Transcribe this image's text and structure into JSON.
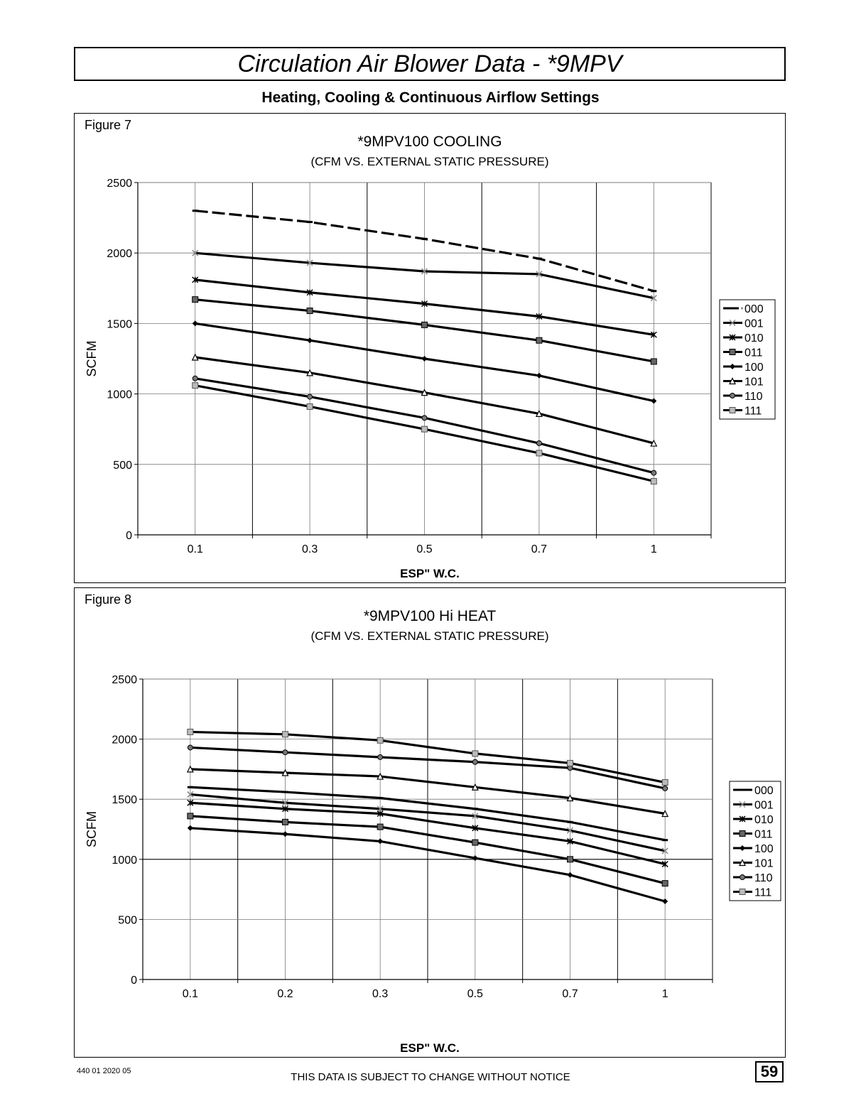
{
  "page": {
    "title": "Circulation Air Blower Data - *9MPV",
    "subtitle": "Heating, Cooling & Continuous Airflow Settings",
    "footer_code": "440 01 2020 05",
    "footer_note": "THIS DATA IS SUBJECT TO CHANGE WITHOUT NOTICE",
    "page_number": "59"
  },
  "chart_data": [
    {
      "figure_label": "Figure 7",
      "type": "line",
      "title": "*9MPV100 COOLING",
      "subtitle": "(CFM VS. EXTERNAL STATIC PRESSURE)",
      "xlabel": "ESP\" W.C.",
      "ylabel": "SCFM",
      "categories": [
        "0.1",
        "0.3",
        "0.5",
        "0.7",
        "1"
      ],
      "ylim": [
        0,
        2500
      ],
      "yticks": [
        0,
        500,
        1000,
        1500,
        2000,
        2500
      ],
      "grid": true,
      "legend_position": "right",
      "series": [
        {
          "name": "000",
          "values": [
            2300,
            2220,
            2100,
            1960,
            1730
          ]
        },
        {
          "name": "001",
          "values": [
            2000,
            1930,
            1870,
            1850,
            1680
          ]
        },
        {
          "name": "010",
          "values": [
            1810,
            1720,
            1640,
            1550,
            1420
          ]
        },
        {
          "name": "011",
          "values": [
            1670,
            1590,
            1490,
            1380,
            1230
          ]
        },
        {
          "name": "100",
          "values": [
            1500,
            1380,
            1250,
            1130,
            950
          ]
        },
        {
          "name": "101",
          "values": [
            1260,
            1150,
            1010,
            860,
            650
          ]
        },
        {
          "name": "110",
          "values": [
            1110,
            980,
            830,
            650,
            440
          ]
        },
        {
          "name": "111",
          "values": [
            1060,
            910,
            750,
            580,
            380
          ]
        }
      ]
    },
    {
      "figure_label": "Figure 8",
      "type": "line",
      "title": "*9MPV100 Hi HEAT",
      "subtitle": "(CFM VS. EXTERNAL STATIC PRESSURE)",
      "xlabel": "ESP\" W.C.",
      "ylabel": "SCFM",
      "categories": [
        "0.1",
        "0.2",
        "0.3",
        "0.5",
        "0.7",
        "1"
      ],
      "ylim": [
        0,
        2500
      ],
      "yticks": [
        0,
        500,
        1000,
        1500,
        2000,
        2500
      ],
      "grid": true,
      "legend_position": "right",
      "series": [
        {
          "name": "000",
          "values": [
            1600,
            1560,
            1510,
            1420,
            1310,
            1160
          ]
        },
        {
          "name": "001",
          "values": [
            1540,
            1470,
            1420,
            1360,
            1240,
            1070
          ]
        },
        {
          "name": "010",
          "values": [
            1470,
            1420,
            1380,
            1260,
            1150,
            960
          ]
        },
        {
          "name": "011",
          "values": [
            1360,
            1310,
            1270,
            1140,
            1000,
            800
          ]
        },
        {
          "name": "100",
          "values": [
            1260,
            1210,
            1150,
            1010,
            870,
            650
          ]
        },
        {
          "name": "101",
          "values": [
            1750,
            1720,
            1690,
            1600,
            1510,
            1380
          ]
        },
        {
          "name": "110",
          "values": [
            1930,
            1890,
            1850,
            1810,
            1760,
            1590
          ]
        },
        {
          "name": "111",
          "values": [
            2060,
            2040,
            1990,
            1880,
            1800,
            1640
          ]
        }
      ]
    }
  ]
}
